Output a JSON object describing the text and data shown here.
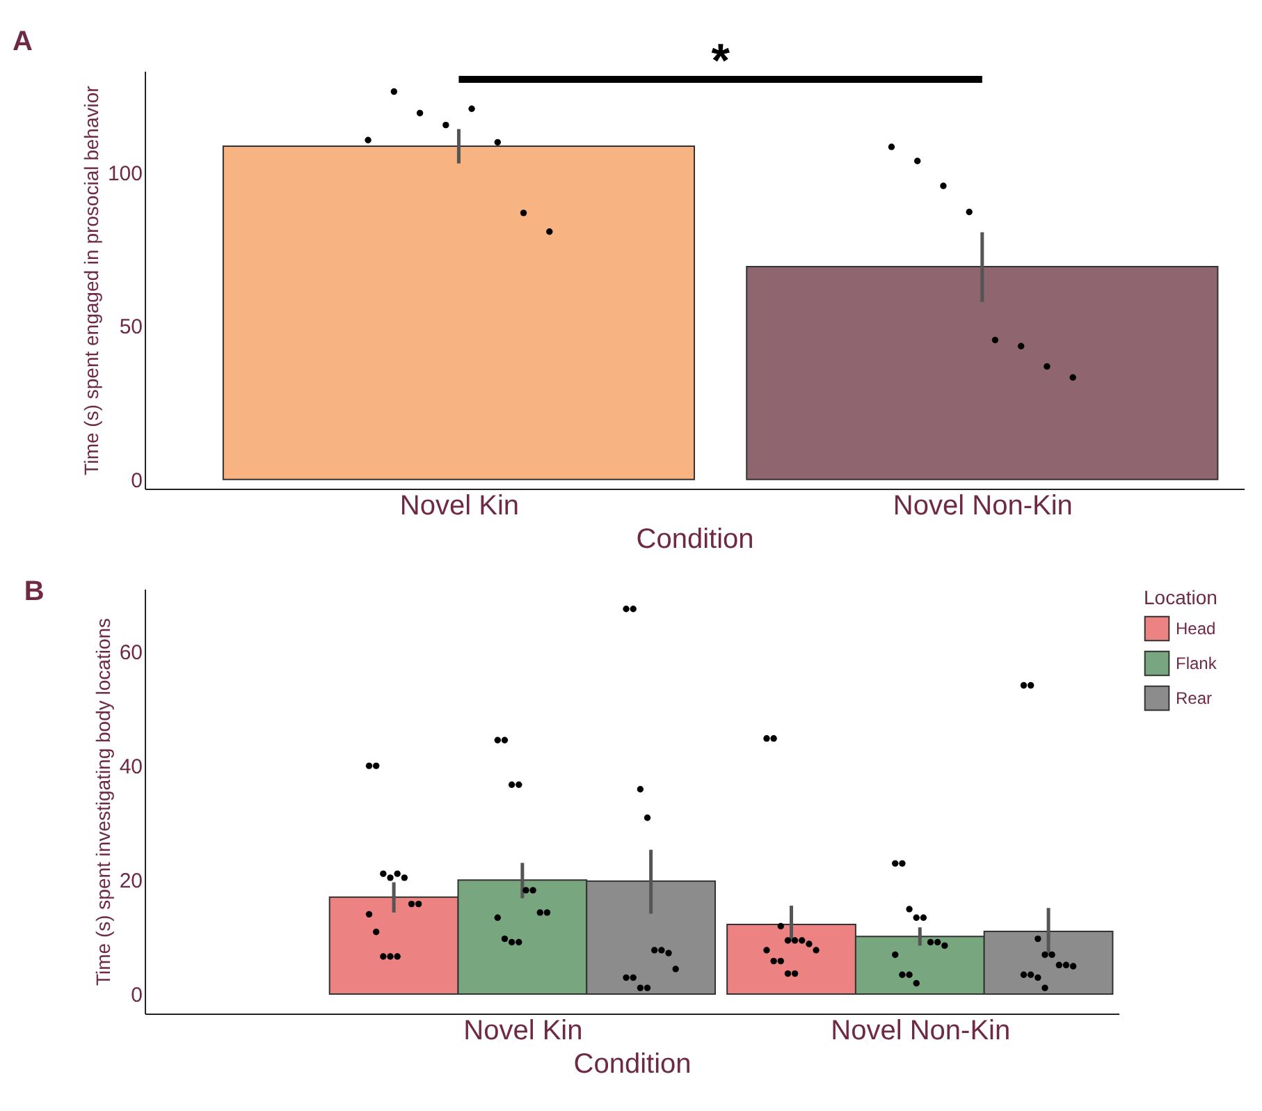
{
  "chart_data": [
    {
      "type": "bar",
      "title": "A",
      "xlabel": "Condition",
      "ylabel": "Time (s) spent engaged in prosocial behavior",
      "categories": [
        "Novel Kin",
        "Novel Non-Kin"
      ],
      "ylim": [
        -3,
        133
      ],
      "yticks": [
        0,
        50,
        100
      ],
      "grid": false,
      "annotations": [
        "*"
      ],
      "series": [
        {
          "type": "bar",
          "values": [
            108.5,
            69.3
          ],
          "colors": [
            "#f7b382",
            "#8f6570"
          ],
          "errors": [
            [
              102.9,
              114.1
            ],
            [
              57.8,
              80.5
            ]
          ]
        },
        {
          "type": "scatter",
          "color": "#000000",
          "x": [
            "Novel Kin",
            "Novel Kin",
            "Novel Kin",
            "Novel Kin",
            "Novel Kin",
            "Novel Kin",
            "Novel Kin",
            "Novel Kin",
            "Novel Non-Kin",
            "Novel Non-Kin",
            "Novel Non-Kin",
            "Novel Non-Kin",
            "Novel Non-Kin",
            "Novel Non-Kin",
            "Novel Non-Kin",
            "Novel Non-Kin"
          ],
          "values": [
            110.5,
            126.3,
            119.3,
            115.4,
            120.7,
            109.8,
            86.8,
            80.7,
            108.3,
            103.7,
            95.6,
            87.1,
            45.4,
            43.4,
            36.8,
            33.2
          ]
        }
      ]
    },
    {
      "type": "bar",
      "title": "B",
      "xlabel": "Condition",
      "ylabel": "Time (s) spent investigating body locations",
      "legend_title": "Location",
      "legend": "right",
      "categories": [
        "Novel Kin",
        "Novel Non-Kin"
      ],
      "ylim": [
        -3.4,
        71
      ],
      "yticks": [
        0,
        20,
        40,
        60
      ],
      "grid": false,
      "series": [
        {
          "type": "bar",
          "name": "Head",
          "color": "#ec8282",
          "values": [
            17.0,
            12.2
          ],
          "errors": [
            [
              14.3,
              19.6
            ],
            [
              9.2,
              15.5
            ]
          ]
        },
        {
          "type": "bar",
          "name": "Flank",
          "color": "#77a67f",
          "values": [
            20.0,
            10.1
          ],
          "errors": [
            [
              16.8,
              23.0
            ],
            [
              8.5,
              11.7
            ]
          ]
        },
        {
          "type": "bar",
          "name": "Rear",
          "color": "#8c8c8c",
          "values": [
            19.8,
            11.0
          ],
          "errors": [
            [
              14.1,
              25.3
            ],
            [
              6.8,
              15.1
            ]
          ]
        },
        {
          "type": "scatter",
          "color": "#000000",
          "x": [
            "Novel Kin",
            "Novel Kin",
            "Novel Kin",
            "Novel Kin",
            "Novel Kin",
            "Novel Kin",
            "Novel Kin",
            "Novel Kin",
            "Novel Kin",
            "Novel Kin",
            "Novel Kin",
            "Novel Kin",
            "Novel Kin",
            "Novel Non-Kin",
            "Novel Non-Kin",
            "Novel Non-Kin",
            "Novel Non-Kin",
            "Novel Non-Kin",
            "Novel Non-Kin",
            "Novel Non-Kin",
            "Novel Non-Kin",
            "Novel Non-Kin",
            "Novel Non-Kin",
            "Novel Non-Kin",
            "Novel Non-Kin",
            "Novel Non-Kin"
          ],
          "values": [
            40.0,
            40.0,
            21.1,
            20.4,
            21.1,
            20.4,
            15.8,
            15.8,
            14.0,
            10.9,
            6.6,
            6.6,
            6.6,
            44.8,
            44.8,
            11.9,
            9.4,
            9.4,
            9.4,
            8.8,
            7.7,
            7.7,
            5.8,
            5.8,
            3.6,
            3.6
          ]
        },
        {
          "type": "scatter",
          "color": "#000000",
          "x": [
            "Novel Kin",
            "Novel Kin",
            "Novel Kin",
            "Novel Kin",
            "Novel Kin",
            "Novel Kin",
            "Novel Kin",
            "Novel Kin",
            "Novel Kin",
            "Novel Kin",
            "Novel Kin",
            "Novel Kin",
            "Novel Non-Kin",
            "Novel Non-Kin",
            "Novel Non-Kin",
            "Novel Non-Kin",
            "Novel Non-Kin",
            "Novel Non-Kin",
            "Novel Non-Kin",
            "Novel Non-Kin",
            "Novel Non-Kin",
            "Novel Non-Kin",
            "Novel Non-Kin",
            "Novel Non-Kin"
          ],
          "values": [
            44.5,
            44.5,
            36.7,
            36.7,
            18.2,
            18.2,
            14.3,
            14.3,
            13.4,
            9.7,
            9.1,
            9.1,
            22.9,
            22.9,
            14.9,
            13.4,
            13.4,
            9.1,
            9.1,
            8.5,
            6.9,
            3.4,
            3.4,
            1.9
          ]
        },
        {
          "type": "scatter",
          "color": "#000000",
          "x": [
            "Novel Kin",
            "Novel Kin",
            "Novel Kin",
            "Novel Kin",
            "Novel Kin",
            "Novel Kin",
            "Novel Kin",
            "Novel Kin",
            "Novel Kin",
            "Novel Kin",
            "Novel Kin",
            "Novel Kin",
            "Novel Non-Kin",
            "Novel Non-Kin",
            "Novel Non-Kin",
            "Novel Non-Kin",
            "Novel Non-Kin",
            "Novel Non-Kin",
            "Novel Non-Kin",
            "Novel Non-Kin",
            "Novel Non-Kin",
            "Novel Non-Kin",
            "Novel Non-Kin",
            "Novel Non-Kin"
          ],
          "values": [
            67.5,
            67.5,
            35.9,
            30.9,
            7.7,
            7.7,
            7.2,
            4.4,
            2.9,
            2.9,
            1.1,
            1.1,
            54.1,
            54.1,
            9.7,
            6.9,
            6.9,
            5.1,
            5.1,
            4.9,
            3.4,
            3.4,
            2.9,
            1.1
          ]
        }
      ]
    }
  ]
}
